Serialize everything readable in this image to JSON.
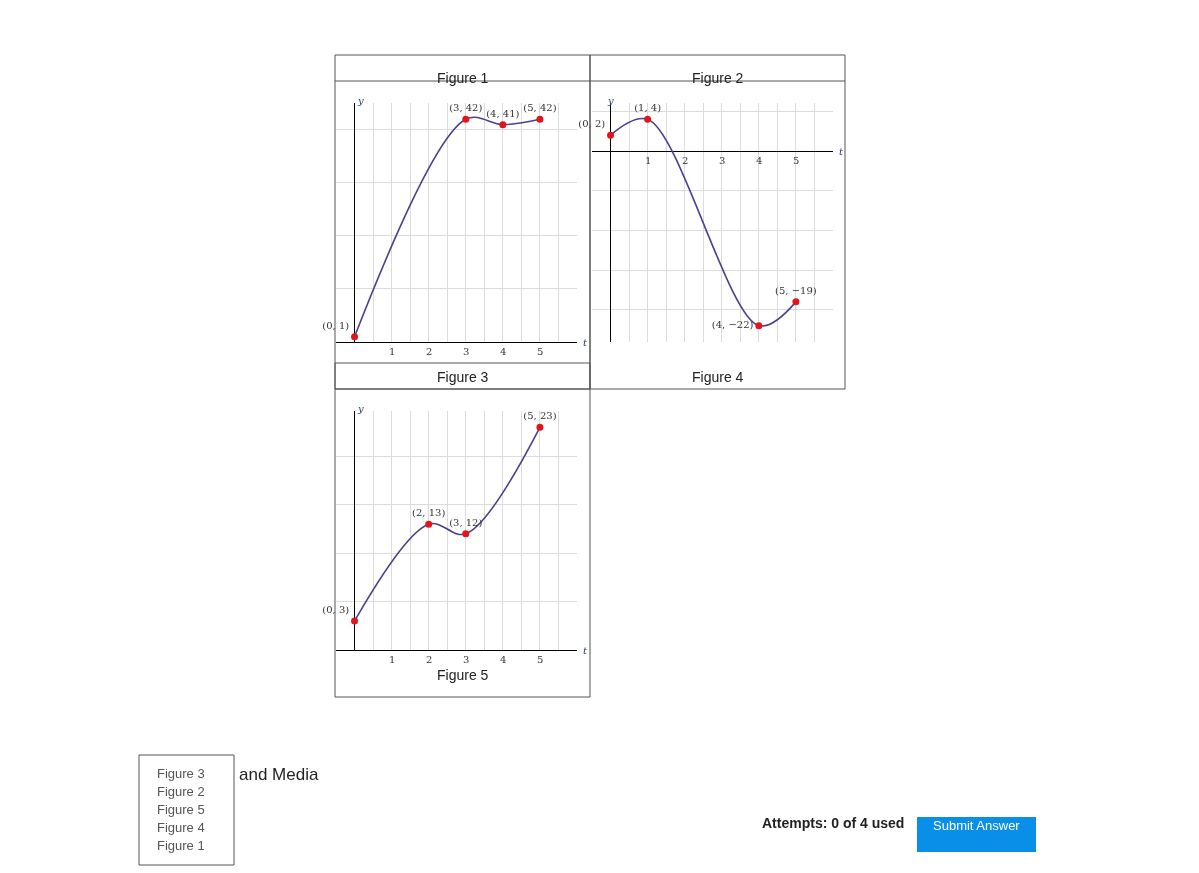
{
  "chart_data": [
    {
      "type": "line",
      "title": "Figure 3",
      "annotations": [
        "Figure 1"
      ],
      "xlabel": "t",
      "ylabel": "y",
      "x": [
        0,
        3,
        4,
        5
      ],
      "series": [
        {
          "color": "#4b3f8f",
          "colors": [
            "#e3141b",
            "#e3141b",
            "#e3141b",
            "#e3141b"
          ],
          "values": [
            1,
            42,
            41,
            42
          ],
          "value_labels": [
            "(0, 1)",
            "(3, 42)",
            "(4, 41)",
            "(5, 42)"
          ]
        }
      ],
      "xlim": [
        -0.5,
        6
      ],
      "xticks": [
        {
          "value": 0.5,
          "label": null
        },
        1,
        {
          "value": 1.5,
          "label": null
        },
        2,
        {
          "value": 2.5,
          "label": null
        },
        3,
        {
          "value": 3.5,
          "label": null
        },
        4,
        {
          "value": 4.5,
          "label": null
        },
        5,
        {
          "value": 5.5,
          "label": null
        }
      ],
      "grid": true,
      "marker": "circle",
      "line_style": "solid"
    },
    {
      "type": "line",
      "title": "Figure 4",
      "annotations": [
        "Figure 2"
      ],
      "xlabel": "t",
      "ylabel": "y",
      "x": [
        0,
        1,
        4,
        5
      ],
      "series": [
        {
          "color": "#4b3f8f",
          "colors": [
            "#e3141b",
            "#e3141b",
            "#e3141b",
            "#e3141b"
          ],
          "values": [
            2,
            4,
            -22,
            -19
          ],
          "value_labels": [
            "(0, 2)",
            "(1, 4)",
            "(4, −22)",
            "(5, −19)"
          ]
        }
      ],
      "xlim": [
        -0.5,
        6
      ],
      "xticks": [
        {
          "value": 0.5,
          "label": null
        },
        1,
        {
          "value": 1.5,
          "label": null
        },
        2,
        {
          "value": 2.5,
          "label": null
        },
        3,
        {
          "value": 3.5,
          "label": null
        },
        4,
        {
          "value": 4.5,
          "label": null
        },
        5,
        {
          "value": 5.5,
          "label": null
        }
      ],
      "grid": true,
      "marker": "circle",
      "line_style": "solid"
    },
    {
      "type": "line",
      "title": "Figure 5",
      "xlabel": "t",
      "ylabel": "y",
      "x": [
        0,
        2,
        3,
        5
      ],
      "series": [
        {
          "color": "#4b3f8f",
          "colors": [
            "#e3141b",
            "#e3141b",
            "#e3141b",
            "#e3141b"
          ],
          "values": [
            3,
            13,
            12,
            23
          ],
          "value_labels": [
            "(0, 3)",
            "(2, 13)",
            "(3, 12)",
            "(5, 23)"
          ]
        }
      ],
      "xlim": [
        -0.5,
        6
      ],
      "xticks": [
        {
          "value": 0.5,
          "label": null
        },
        1,
        {
          "value": 1.5,
          "label": null
        },
        2,
        {
          "value": 2.5,
          "label": null
        },
        3,
        {
          "value": 3.5,
          "label": null
        },
        4,
        {
          "value": 4.5,
          "label": null
        },
        5,
        {
          "value": 5.5,
          "label": null
        }
      ],
      "grid": true,
      "marker": "circle",
      "line_style": "solid"
    },
    {
      "type": "other",
      "annotations": [
        "Figure 3",
        "Figure 2",
        "Figure 5",
        "Figure 4",
        "Figure 1",
        "and Media",
        "Attempts: 0 of 4 used",
        "Submit Answer"
      ]
    }
  ]
}
